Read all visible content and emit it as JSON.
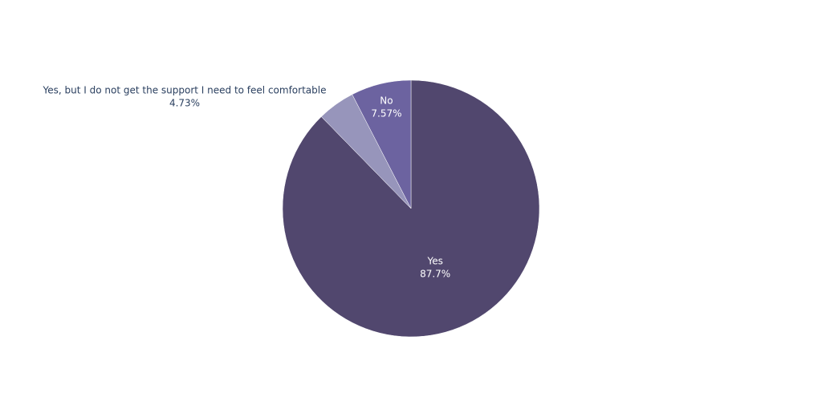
{
  "chart_data": {
    "type": "pie",
    "categories": [
      "Yes",
      "Yes, but I do not get the support I need to feel comfortable",
      "No"
    ],
    "values": [
      87.7,
      4.73,
      7.57
    ],
    "value_labels": [
      "87.7%",
      "4.73%",
      "7.57%"
    ],
    "colors": [
      "#51476e",
      "#9795bb",
      "#6c63a0"
    ]
  }
}
